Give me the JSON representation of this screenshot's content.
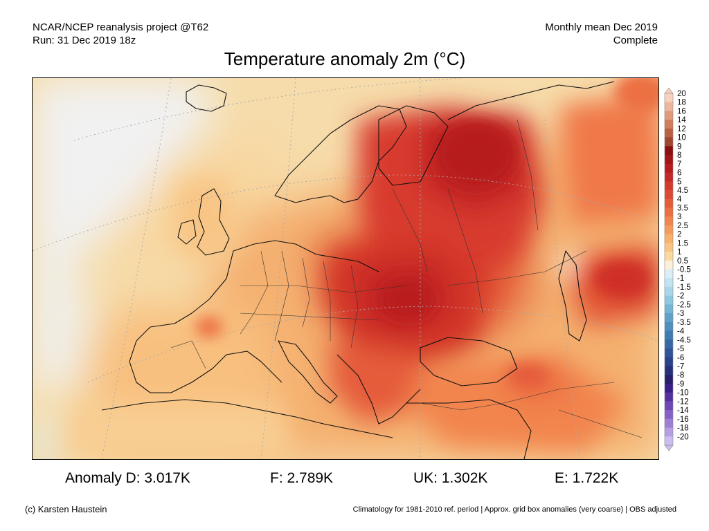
{
  "header": {
    "source_line1": "NCAR/NCEP reanalysis project @T62",
    "source_line2": "Run: 31 Dec 2019 18z",
    "period_line1": "Monthly mean Dec 2019",
    "period_line2": "Complete"
  },
  "title": "Temperature anomaly 2m (°C)",
  "colorbar": {
    "labels": [
      "20",
      "18",
      "16",
      "14",
      "12",
      "10",
      "9",
      "8",
      "7",
      "6",
      "5",
      "4.5",
      "4",
      "3.5",
      "3",
      "2.5",
      "2",
      "1.5",
      "1",
      "0.5",
      "-0.5",
      "-1",
      "-1.5",
      "-2",
      "-2.5",
      "-3",
      "-3.5",
      "-4",
      "-4.5",
      "-5",
      "-6",
      "-7",
      "-8",
      "-9",
      "-10",
      "-12",
      "-14",
      "-16",
      "-18",
      "-20"
    ],
    "colors": [
      "#f7d2bf",
      "#eeb79d",
      "#e19b7c",
      "#d07d5d",
      "#b95f42",
      "#a1462f",
      "#8c0f0f",
      "#a31515",
      "#b71c1c",
      "#c62828",
      "#d33a2c",
      "#dd4a33",
      "#e55c3a",
      "#ec6f43",
      "#f2844e",
      "#f69a5c",
      "#f8b06d",
      "#fac584",
      "#fbd89c",
      "#fdf0d9",
      "#dbeef6",
      "#c2e3f1",
      "#a8d6ea",
      "#8ec7e0",
      "#74b5d5",
      "#5ea2c9",
      "#4d8fbd",
      "#407cb1",
      "#3668a4",
      "#2f5499",
      "#2a418c",
      "#28307c",
      "#271e6c",
      "#3a1f86",
      "#55319e",
      "#6e48b6",
      "#8662c8",
      "#9d7fd6",
      "#b59ee2",
      "#cbbdee"
    ]
  },
  "stats": {
    "germany": "Anomaly D: 3.017K",
    "france": "F: 2.789K",
    "uk": "UK: 1.302K",
    "spain": "E: 1.722K"
  },
  "footer": {
    "credit": "(c) Karsten Haustein",
    "note": "Climatology for 1981-2010 ref. period | Approx. grid box anomalies (very coarse) | OBS adjusted"
  }
}
